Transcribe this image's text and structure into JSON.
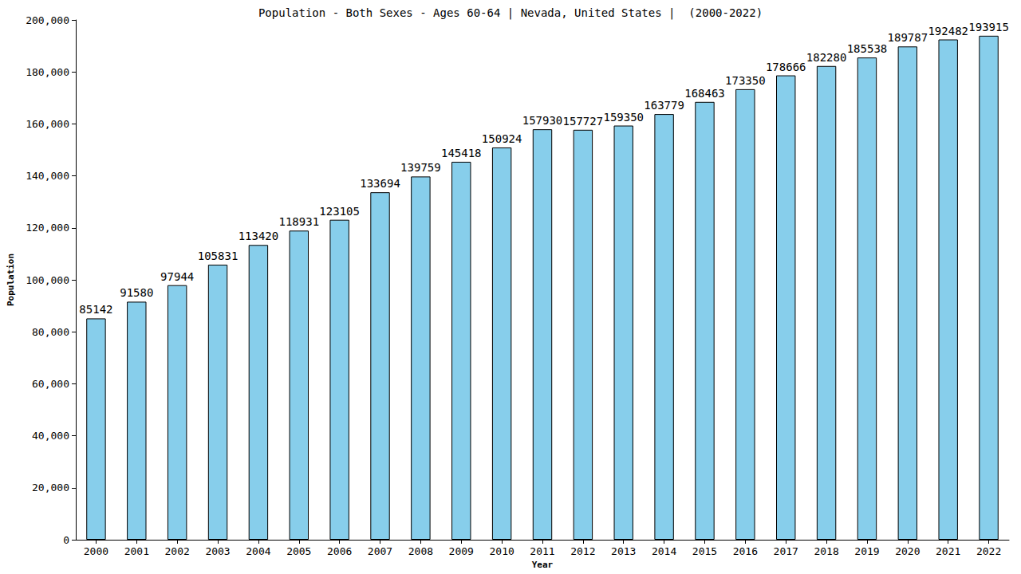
{
  "chart_data": {
    "type": "bar",
    "title": "Population - Both Sexes - Ages 60-64 | Nevada, United States |  (2000-2022)",
    "x_label": "Year",
    "y_label": "Population",
    "categories": [
      "2000",
      "2001",
      "2002",
      "2003",
      "2004",
      "2005",
      "2006",
      "2007",
      "2008",
      "2009",
      "2010",
      "2011",
      "2012",
      "2013",
      "2014",
      "2015",
      "2016",
      "2017",
      "2018",
      "2019",
      "2020",
      "2021",
      "2022"
    ],
    "values": [
      85142,
      91580,
      97944,
      105831,
      113420,
      118931,
      123105,
      133694,
      139759,
      145418,
      150924,
      157930,
      157727,
      159350,
      163779,
      168463,
      173350,
      178666,
      182280,
      185538,
      189787,
      192482,
      193915
    ],
    "color": "#87ceeb",
    "ylim": [
      0,
      200000
    ],
    "yticks": [
      0,
      20000,
      40000,
      60000,
      80000,
      100000,
      120000,
      140000,
      160000,
      180000,
      200000
    ],
    "grid": false,
    "data_labels": true
  }
}
